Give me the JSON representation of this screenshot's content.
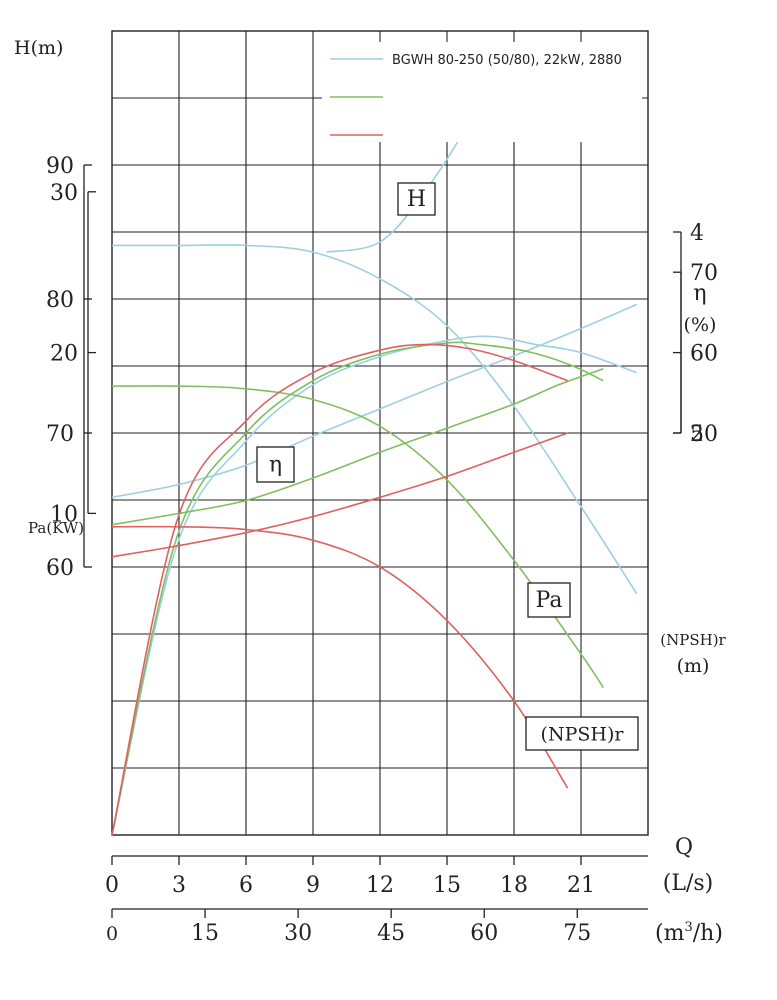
{
  "chart_data": {
    "type": "line",
    "title": "",
    "legend": {
      "placement": "top-right",
      "entries": [
        {
          "name": "BGWH 80-250 (50/80), 22kW, 2880",
          "color": "#9cd0e0"
        },
        {
          "name": "",
          "color": "#80bf60"
        },
        {
          "name": "",
          "color": "#e06060"
        }
      ]
    },
    "axes": {
      "head": {
        "label": "H(m)",
        "ticks": [
          "90",
          "80",
          "70",
          "60"
        ],
        "range": [
          40,
          100
        ]
      },
      "efficiency": {
        "label_symbol": "η",
        "label_unit": "(%)",
        "ticks": [
          "70",
          "60",
          "50"
        ],
        "range": [
          0,
          100
        ]
      },
      "power": {
        "label": "Pa(KW)",
        "ticks": [
          "30",
          "20",
          "10"
        ],
        "range": [
          -10,
          40
        ]
      },
      "npsh": {
        "label": "(NPSH)r",
        "label_unit": "(m)",
        "ticks": [
          "4",
          "2"
        ],
        "range": [
          -2,
          6
        ]
      },
      "flow_ls": {
        "label_symbol": "Q",
        "label_unit": "(L/s)",
        "ticks": [
          "0",
          "3",
          "6",
          "9",
          "12",
          "15",
          "18",
          "21"
        ],
        "range": [
          0,
          24
        ]
      },
      "flow_m3h": {
        "label_unit_pre": "(m",
        "label_unit_sup": "3",
        "label_unit_post": "/h)",
        "ticks": [
          "0",
          "15",
          "30",
          "45",
          "60",
          "75"
        ],
        "range": [
          0,
          86.4
        ]
      }
    },
    "grid": true,
    "curve_tags": {
      "head": "H",
      "efficiency": "η",
      "power": "Pa",
      "npsh": "(NPSH)r"
    },
    "series": [
      {
        "color": "#9cd0e0",
        "head": [
          [
            0,
            84
          ],
          [
            3,
            84
          ],
          [
            6,
            84
          ],
          [
            9,
            83.5
          ],
          [
            12,
            81.5
          ],
          [
            15,
            78
          ],
          [
            18,
            72
          ],
          [
            21,
            64.5
          ],
          [
            23.5,
            58
          ]
        ],
        "efficiency": [
          [
            0,
            0
          ],
          [
            2.9,
            36
          ],
          [
            6,
            49
          ],
          [
            9,
            56
          ],
          [
            12,
            59.5
          ],
          [
            15,
            61.5
          ],
          [
            17,
            62
          ],
          [
            19,
            61
          ],
          [
            21,
            60
          ],
          [
            23.5,
            57.5
          ]
        ],
        "power": [
          [
            0,
            11
          ],
          [
            3,
            11.8
          ],
          [
            6,
            13
          ],
          [
            9,
            14.8
          ],
          [
            12,
            16.5
          ],
          [
            15,
            18.2
          ],
          [
            18,
            19.8
          ],
          [
            21,
            21.5
          ],
          [
            23.5,
            23
          ]
        ],
        "npsh": [
          [
            9.6,
            3.8
          ],
          [
            12,
            3.9
          ],
          [
            14,
            4.4
          ],
          [
            16,
            5.1
          ],
          [
            17.5,
            5.8
          ]
        ]
      },
      {
        "color": "#80bf60",
        "head": [
          [
            0,
            73.5
          ],
          [
            3,
            73.5
          ],
          [
            6,
            73.3
          ],
          [
            9,
            72.5
          ],
          [
            12,
            70.5
          ],
          [
            15,
            66.5
          ],
          [
            18,
            60.5
          ],
          [
            21,
            53.5
          ],
          [
            22,
            51
          ]
        ],
        "efficiency": [
          [
            0,
            0
          ],
          [
            2.9,
            37
          ],
          [
            6,
            50
          ],
          [
            9,
            56.5
          ],
          [
            12,
            59.8
          ],
          [
            15,
            61.2
          ],
          [
            16.5,
            61
          ],
          [
            18.5,
            60.2
          ],
          [
            20.5,
            58.5
          ],
          [
            22,
            56.5
          ]
        ],
        "power": [
          [
            0,
            9.3
          ],
          [
            3,
            10
          ],
          [
            6,
            10.8
          ],
          [
            9,
            12.2
          ],
          [
            12,
            13.8
          ],
          [
            15,
            15.3
          ],
          [
            18,
            16.8
          ],
          [
            20,
            18
          ],
          [
            22,
            19
          ]
        ]
      },
      {
        "color": "#e06060",
        "head": [
          [
            0,
            63
          ],
          [
            3,
            63
          ],
          [
            6,
            62.8
          ],
          [
            9,
            62
          ],
          [
            12,
            60
          ],
          [
            15,
            56
          ],
          [
            18,
            50
          ],
          [
            20.4,
            43.5
          ]
        ],
        "efficiency": [
          [
            0,
            0
          ],
          [
            2.9,
            39
          ],
          [
            6,
            51.5
          ],
          [
            9,
            57.5
          ],
          [
            12,
            60.3
          ],
          [
            14,
            61
          ],
          [
            16,
            60.5
          ],
          [
            18,
            59
          ],
          [
            20.4,
            56.5
          ]
        ],
        "power": [
          [
            0,
            7.3
          ],
          [
            3,
            8
          ],
          [
            6,
            8.8
          ],
          [
            9,
            9.8
          ],
          [
            12,
            11
          ],
          [
            15,
            12.3
          ],
          [
            18,
            13.8
          ],
          [
            20.4,
            15
          ]
        ]
      }
    ]
  }
}
